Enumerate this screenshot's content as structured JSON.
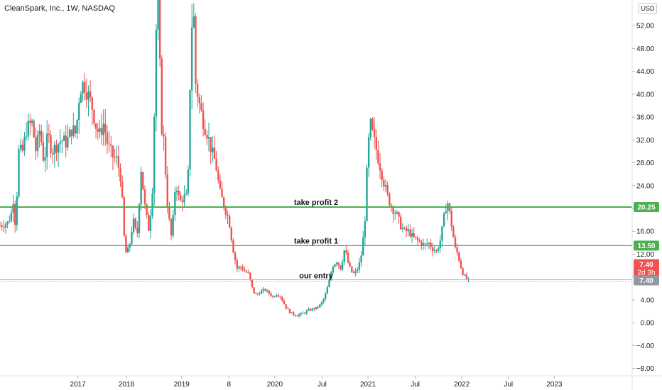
{
  "header": {
    "title": "CleanSpark, Inc., 1W, NASDAQ",
    "currency": "USD"
  },
  "chart_data": {
    "type": "candlestick",
    "title": "CleanSpark, Inc., 1W, NASDAQ",
    "xlabel": "",
    "ylabel": "",
    "ylim": [
      -9.3,
      56.5
    ],
    "y_ticks": [
      "−8.00",
      "−4.00",
      "0.00",
      "4.00",
      "8.00",
      "12.00",
      "16.00",
      "20.00",
      "24.00",
      "28.00",
      "32.00",
      "36.00",
      "40.00",
      "44.00",
      "48.00",
      "52.00"
    ],
    "y_tick_values": [
      -8,
      -4,
      0,
      4,
      8,
      12,
      16,
      20,
      24,
      28,
      32,
      36,
      40,
      44,
      48,
      52
    ],
    "x_ticks": [
      "2017",
      "2018",
      "2019",
      "8",
      "2020",
      "Jul",
      "2021",
      "Jul",
      "2022",
      "Jul",
      "2023"
    ],
    "x_tick_positions": [
      0.117,
      0.19,
      0.273,
      0.344,
      0.413,
      0.484,
      0.553,
      0.624,
      0.694,
      0.764,
      0.833
    ],
    "grid": false,
    "up_color": "#26a69a",
    "down_color": "#ef5350",
    "level_color": "#4caf50",
    "levels": [
      {
        "label": "take profit 2",
        "value": 20.25,
        "tag": "20.25",
        "color": "#4caf50"
      },
      {
        "label": "take profit 1",
        "value": 13.5,
        "tag": "13.50",
        "color": "#4caf50"
      },
      {
        "label": "our entry",
        "value": 7.4,
        "tag": "7.40",
        "color": "#9598a1"
      }
    ],
    "last_price": {
      "value": 7.4,
      "tag": "7.40",
      "countdown": "2d 3h",
      "color": "#ef5350"
    },
    "price_path": [
      [
        0.0,
        17.0
      ],
      [
        0.012,
        17.5
      ],
      [
        0.018,
        19.5
      ],
      [
        0.022,
        24.0
      ],
      [
        0.024,
        3.5
      ],
      [
        0.026,
        30.0
      ],
      [
        0.034,
        30.0
      ],
      [
        0.04,
        34.0
      ],
      [
        0.048,
        35.0
      ],
      [
        0.054,
        30.0
      ],
      [
        0.06,
        34.0
      ],
      [
        0.066,
        28.0
      ],
      [
        0.072,
        33.0
      ],
      [
        0.078,
        30.0
      ],
      [
        0.085,
        31.0
      ],
      [
        0.092,
        32.0
      ],
      [
        0.1,
        31.5
      ],
      [
        0.108,
        34.0
      ],
      [
        0.114,
        33.0
      ],
      [
        0.12,
        41.0
      ],
      [
        0.126,
        42.0
      ],
      [
        0.132,
        40.0
      ],
      [
        0.138,
        38.0
      ],
      [
        0.145,
        34.0
      ],
      [
        0.15,
        33.0
      ],
      [
        0.156,
        35.0
      ],
      [
        0.162,
        31.0
      ],
      [
        0.17,
        29.0
      ],
      [
        0.176,
        28.5
      ],
      [
        0.182,
        25.0
      ],
      [
        0.188,
        12.0
      ],
      [
        0.194,
        13.0
      ],
      [
        0.2,
        18.0
      ],
      [
        0.206,
        15.0
      ],
      [
        0.212,
        27.0
      ],
      [
        0.218,
        20.0
      ],
      [
        0.224,
        16.0
      ],
      [
        0.23,
        25.0
      ],
      [
        0.234,
        50.0
      ],
      [
        0.238,
        58.0
      ],
      [
        0.242,
        35.0
      ],
      [
        0.246,
        32.0
      ],
      [
        0.252,
        20.0
      ],
      [
        0.258,
        14.5
      ],
      [
        0.264,
        25.0
      ],
      [
        0.27,
        21.0
      ],
      [
        0.276,
        22.0
      ],
      [
        0.282,
        22.0
      ],
      [
        0.286,
        44.0
      ],
      [
        0.29,
        58.0
      ],
      [
        0.294,
        42.0
      ],
      [
        0.3,
        38.0
      ],
      [
        0.306,
        35.0
      ],
      [
        0.312,
        33.0
      ],
      [
        0.318,
        30.0
      ],
      [
        0.324,
        28.0
      ],
      [
        0.33,
        23.0
      ],
      [
        0.338,
        20.0
      ],
      [
        0.344,
        18.0
      ],
      [
        0.35,
        13.0
      ],
      [
        0.356,
        9.5
      ],
      [
        0.362,
        9.8
      ],
      [
        0.368,
        9.0
      ],
      [
        0.374,
        8.5
      ],
      [
        0.38,
        5.5
      ],
      [
        0.386,
        4.8
      ],
      [
        0.392,
        5.5
      ],
      [
        0.398,
        5.8
      ],
      [
        0.404,
        5.2
      ],
      [
        0.41,
        4.5
      ],
      [
        0.416,
        5.0
      ],
      [
        0.422,
        4.5
      ],
      [
        0.428,
        3.0
      ],
      [
        0.434,
        2.0
      ],
      [
        0.44,
        1.5
      ],
      [
        0.446,
        1.3
      ],
      [
        0.452,
        1.5
      ],
      [
        0.458,
        1.8
      ],
      [
        0.464,
        2.2
      ],
      [
        0.47,
        2.4
      ],
      [
        0.476,
        2.6
      ],
      [
        0.482,
        3.2
      ],
      [
        0.488,
        4.5
      ],
      [
        0.494,
        7.0
      ],
      [
        0.5,
        10.0
      ],
      [
        0.506,
        10.8
      ],
      [
        0.512,
        9.5
      ],
      [
        0.518,
        13.0
      ],
      [
        0.524,
        10.0
      ],
      [
        0.53,
        8.5
      ],
      [
        0.536,
        9.0
      ],
      [
        0.542,
        11.0
      ],
      [
        0.548,
        17.0
      ],
      [
        0.552,
        28.0
      ],
      [
        0.556,
        35.0
      ],
      [
        0.56,
        33.0
      ],
      [
        0.566,
        30.0
      ],
      [
        0.572,
        27.0
      ],
      [
        0.578,
        24.0
      ],
      [
        0.584,
        21.5
      ],
      [
        0.59,
        20.0
      ],
      [
        0.596,
        19.0
      ],
      [
        0.602,
        17.0
      ],
      [
        0.608,
        16.0
      ],
      [
        0.614,
        16.0
      ],
      [
        0.62,
        15.0
      ],
      [
        0.626,
        14.5
      ],
      [
        0.632,
        14.0
      ],
      [
        0.638,
        13.5
      ],
      [
        0.644,
        14.0
      ],
      [
        0.65,
        13.0
      ],
      [
        0.656,
        12.5
      ],
      [
        0.662,
        14.5
      ],
      [
        0.668,
        19.0
      ],
      [
        0.672,
        21.5
      ],
      [
        0.676,
        19.0
      ],
      [
        0.68,
        16.0
      ],
      [
        0.684,
        13.0
      ],
      [
        0.688,
        12.0
      ],
      [
        0.692,
        10.0
      ],
      [
        0.696,
        8.5
      ],
      [
        0.7,
        7.8
      ],
      [
        0.704,
        7.4
      ]
    ]
  }
}
